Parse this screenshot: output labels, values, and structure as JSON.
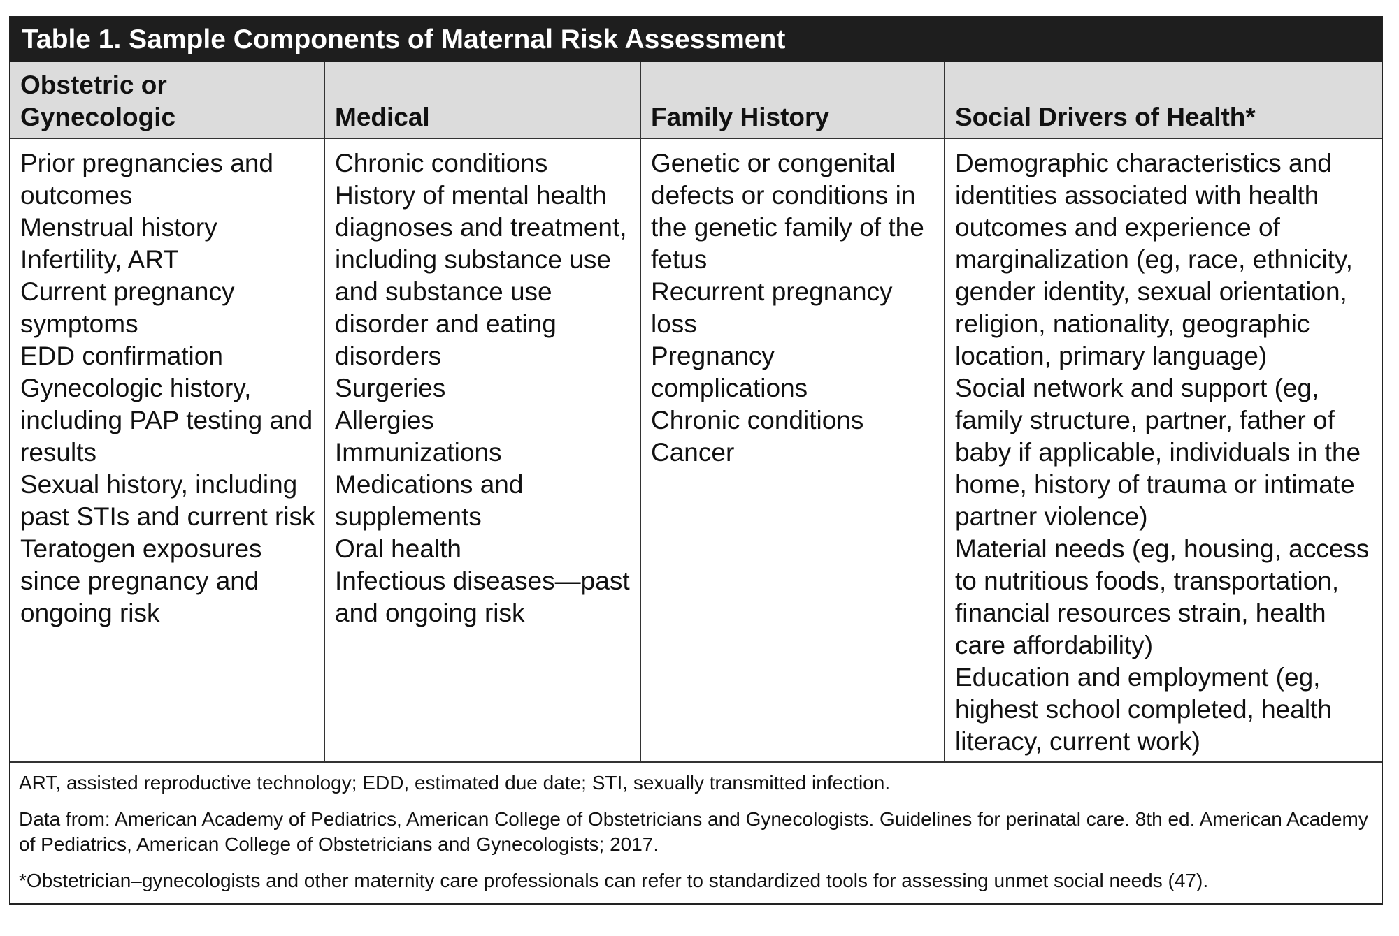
{
  "title": "Table 1. Sample Components of Maternal Risk Assessment",
  "table": {
    "headers": [
      "Obstetric or Gynecologic",
      "Medical",
      "Family History",
      "Social Drivers of Health*"
    ],
    "rows": [
      [
        [
          "Prior pregnancies and outcomes",
          "Menstrual history",
          "Infertility, ART",
          "Current pregnancy symptoms",
          "EDD confirmation",
          "Gynecologic history, including PAP testing and results",
          "Sexual history, including past STIs and current risk",
          "Teratogen exposures since pregnancy and ongoing risk"
        ],
        [
          "Chronic conditions",
          "History of mental health diagnoses and treatment, including substance use and substance use disorder and eating disorders",
          "Surgeries",
          "Allergies",
          "Immunizations",
          "Medications and supplements",
          "Oral health",
          "Infectious diseases—past and ongoing risk"
        ],
        [
          "Genetic or congenital defects or conditions in the genetic family of the fetus",
          "Recurrent pregnancy loss",
          "Pregnancy complications",
          "Chronic conditions",
          "Cancer"
        ],
        [
          "Demographic characteristics and identities associated with health outcomes and experience of marginalization (eg, race, ethnicity, gender identity, sexual orientation, religion, nationality, geographic location, primary language)",
          "Social network and support (eg, family structure, partner, father of baby if applicable, individuals in the home, history of trauma or intimate partner violence)",
          "Material needs (eg, housing, access to nutritious foods, transportation, financial resources strain, health care affordability)",
          "Education and employment (eg, highest school completed, health literacy, current work)"
        ]
      ]
    ]
  },
  "footnotes": [
    "ART, assisted reproductive technology; EDD, estimated due date; STI, sexually transmitted infection.",
    "Data from: American Academy of Pediatrics, American College of Obstetricians and Gynecologists. Guidelines for perinatal care. 8th ed. American Academy of Pediatrics, American College of Obstetricians and Gynecologists; 2017.",
    "*Obstetrician–gynecologists and other maternity care professionals can refer to standardized tools for assessing unmet social needs (47)."
  ]
}
